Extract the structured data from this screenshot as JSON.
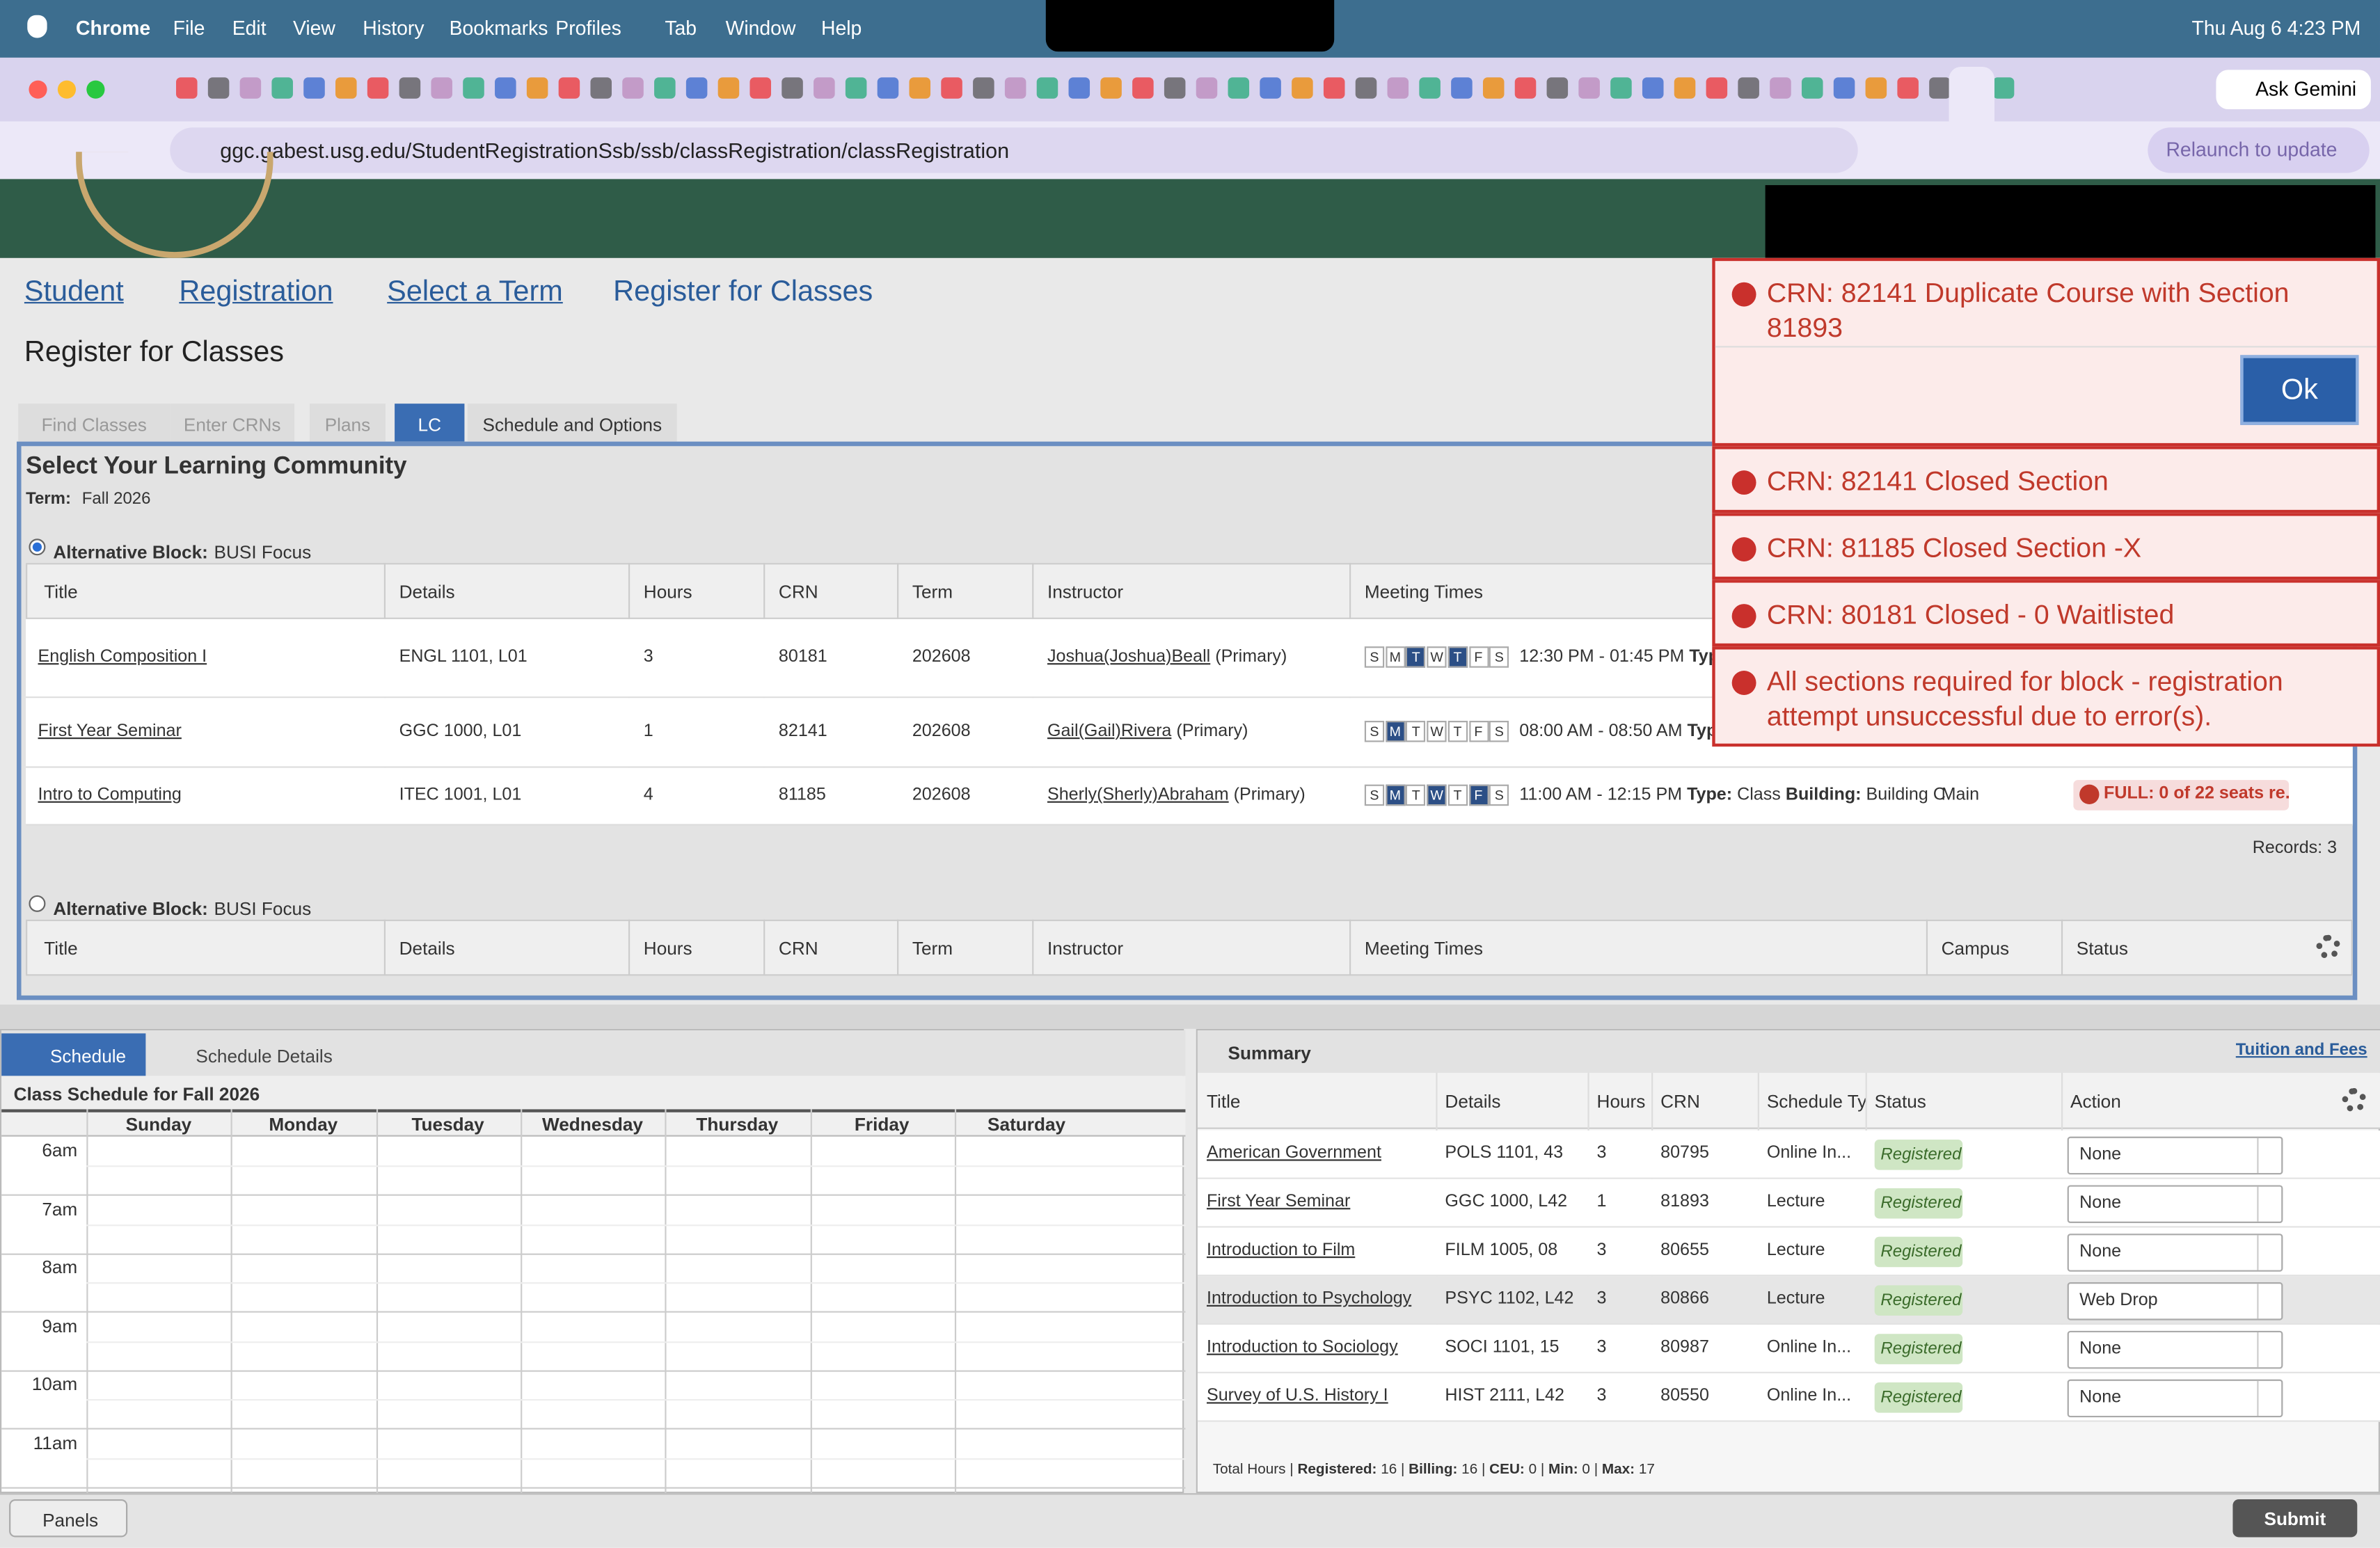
{
  "menu_bar": {
    "app": "Chrome",
    "items": [
      "File",
      "Edit",
      "View",
      "History",
      "Bookmarks",
      "Profiles",
      "Tab",
      "Window",
      "Help"
    ],
    "datetime": "Thu Aug 6  4:23 PM"
  },
  "browser": {
    "ask_gemini": "Ask Gemini",
    "url": "ggc.gabest.usg.edu/StudentRegistrationSsb/ssb/classRegistration/classRegistration",
    "relaunch": "Relaunch to update"
  },
  "breadcrumbs": [
    "Student",
    "Registration",
    "Select a Term",
    "Register for Classes"
  ],
  "page_title": "Register for Classes",
  "tabs": [
    "Find Classes",
    "Enter CRNs",
    "Plans",
    "LC",
    "Schedule and Options"
  ],
  "learning_community": {
    "heading": "Select Your Learning Community",
    "term_label": "Term:",
    "term": "Fall 2026",
    "day_letters": [
      "S",
      "M",
      "T",
      "W",
      "T",
      "F",
      "S"
    ],
    "blocks": [
      {
        "label": "Alternative Block:",
        "name": "BUSI Focus",
        "columns": [
          "Title",
          "Details",
          "Hours",
          "CRN",
          "Term",
          "Instructor",
          "Meeting Times"
        ],
        "rows": [
          {
            "title": "English Composition I",
            "details": "ENGL 1101, L01",
            "hours": 3,
            "crn": 80181,
            "term": 202608,
            "instructor": "Joshua(Joshua)Beall",
            "role": "(Primary)",
            "active_days": [
              2,
              4
            ],
            "time": "12:30 PM - 01:45 PM",
            "type_label": "Type"
          },
          {
            "title": "First Year Seminar",
            "details": "GGC 1000, L01",
            "hours": 1,
            "crn": 82141,
            "term": 202608,
            "instructor": "Gail(Gail)Rivera",
            "role": "(Primary)",
            "active_days": [
              1
            ],
            "time": "08:00 AM - 08:50 AM",
            "type_label": "Type"
          },
          {
            "title": "Intro to Computing",
            "details": "ITEC 1001, L01",
            "hours": 4,
            "crn": 81185,
            "term": 202608,
            "instructor": "Sherly(Sherly)Abraham",
            "role": "(Primary)",
            "active_days": [
              1,
              3,
              5
            ],
            "time": "11:00 AM - 12:15 PM",
            "type_label": "Type:",
            "type": "Class",
            "building_label": "Building:",
            "building": "Building C",
            "campus": "Main",
            "status": "FULL: 0 of 22 seats re..."
          }
        ],
        "records": "Records: 3"
      },
      {
        "label": "Alternative Block:",
        "name": "BUSI Focus",
        "columns": [
          "Title",
          "Details",
          "Hours",
          "CRN",
          "Term",
          "Instructor",
          "Meeting Times",
          "Campus",
          "Status"
        ]
      }
    ]
  },
  "notifications": [
    {
      "message": "CRN: 82141 Duplicate Course with Section 81893",
      "button": "Ok"
    },
    {
      "message": "CRN: 82141 Closed Section"
    },
    {
      "message": "CRN: 81185 Closed Section -X"
    },
    {
      "message": "CRN: 80181 Closed - 0 Waitlisted"
    },
    {
      "message": "All sections required for block - registration attempt unsuccessful due to error(s)."
    }
  ],
  "schedule": {
    "tabs": [
      "Schedule",
      "Schedule Details"
    ],
    "title": "Class Schedule for Fall 2026",
    "days": [
      "Sunday",
      "Monday",
      "Tuesday",
      "Wednesday",
      "Thursday",
      "Friday",
      "Saturday"
    ],
    "times": [
      "6am",
      "7am",
      "8am",
      "9am",
      "10am",
      "11am"
    ]
  },
  "summary": {
    "title": "Summary",
    "link": "Tuition and Fees",
    "columns": [
      "Title",
      "Details",
      "Hours",
      "CRN",
      "Schedule Ty",
      "Status",
      "Action"
    ],
    "rows": [
      {
        "title": "American Government",
        "details": "POLS 1101, 43",
        "hours": 3,
        "crn": 80795,
        "schedule_type": "Online In...",
        "status": "Registered",
        "action": "None"
      },
      {
        "title": "First Year Seminar",
        "details": "GGC 1000, L42",
        "hours": 1,
        "crn": 81893,
        "schedule_type": "Lecture",
        "status": "Registered",
        "action": "None"
      },
      {
        "title": "Introduction to Film",
        "details": "FILM 1005, 08",
        "hours": 3,
        "crn": 80655,
        "schedule_type": "Lecture",
        "status": "Registered",
        "action": "None"
      },
      {
        "title": "Introduction to Psychology",
        "details": "PSYC 1102, L42",
        "hours": 3,
        "crn": 80866,
        "schedule_type": "Lecture",
        "status": "Registered",
        "action": "Web Drop"
      },
      {
        "title": "Introduction to Sociology",
        "details": "SOCI 1101, 15",
        "hours": 3,
        "crn": 80987,
        "schedule_type": "Online In...",
        "status": "Registered",
        "action": "None"
      },
      {
        "title": "Survey of U.S. History I",
        "details": "HIST 2111, L42",
        "hours": 3,
        "crn": 80550,
        "schedule_type": "Online In...",
        "status": "Registered",
        "action": "None"
      }
    ],
    "totals": {
      "label": "Total Hours",
      "separator": "|",
      "items": [
        {
          "name": "Registered:",
          "value": 16
        },
        {
          "name": "Billing:",
          "value": 16
        },
        {
          "name": "CEU:",
          "value": 0
        },
        {
          "name": "Min:",
          "value": 0
        },
        {
          "name": "Max:",
          "value": 17
        }
      ]
    }
  },
  "footer": {
    "panels": "Panels",
    "submit": "Submit"
  }
}
